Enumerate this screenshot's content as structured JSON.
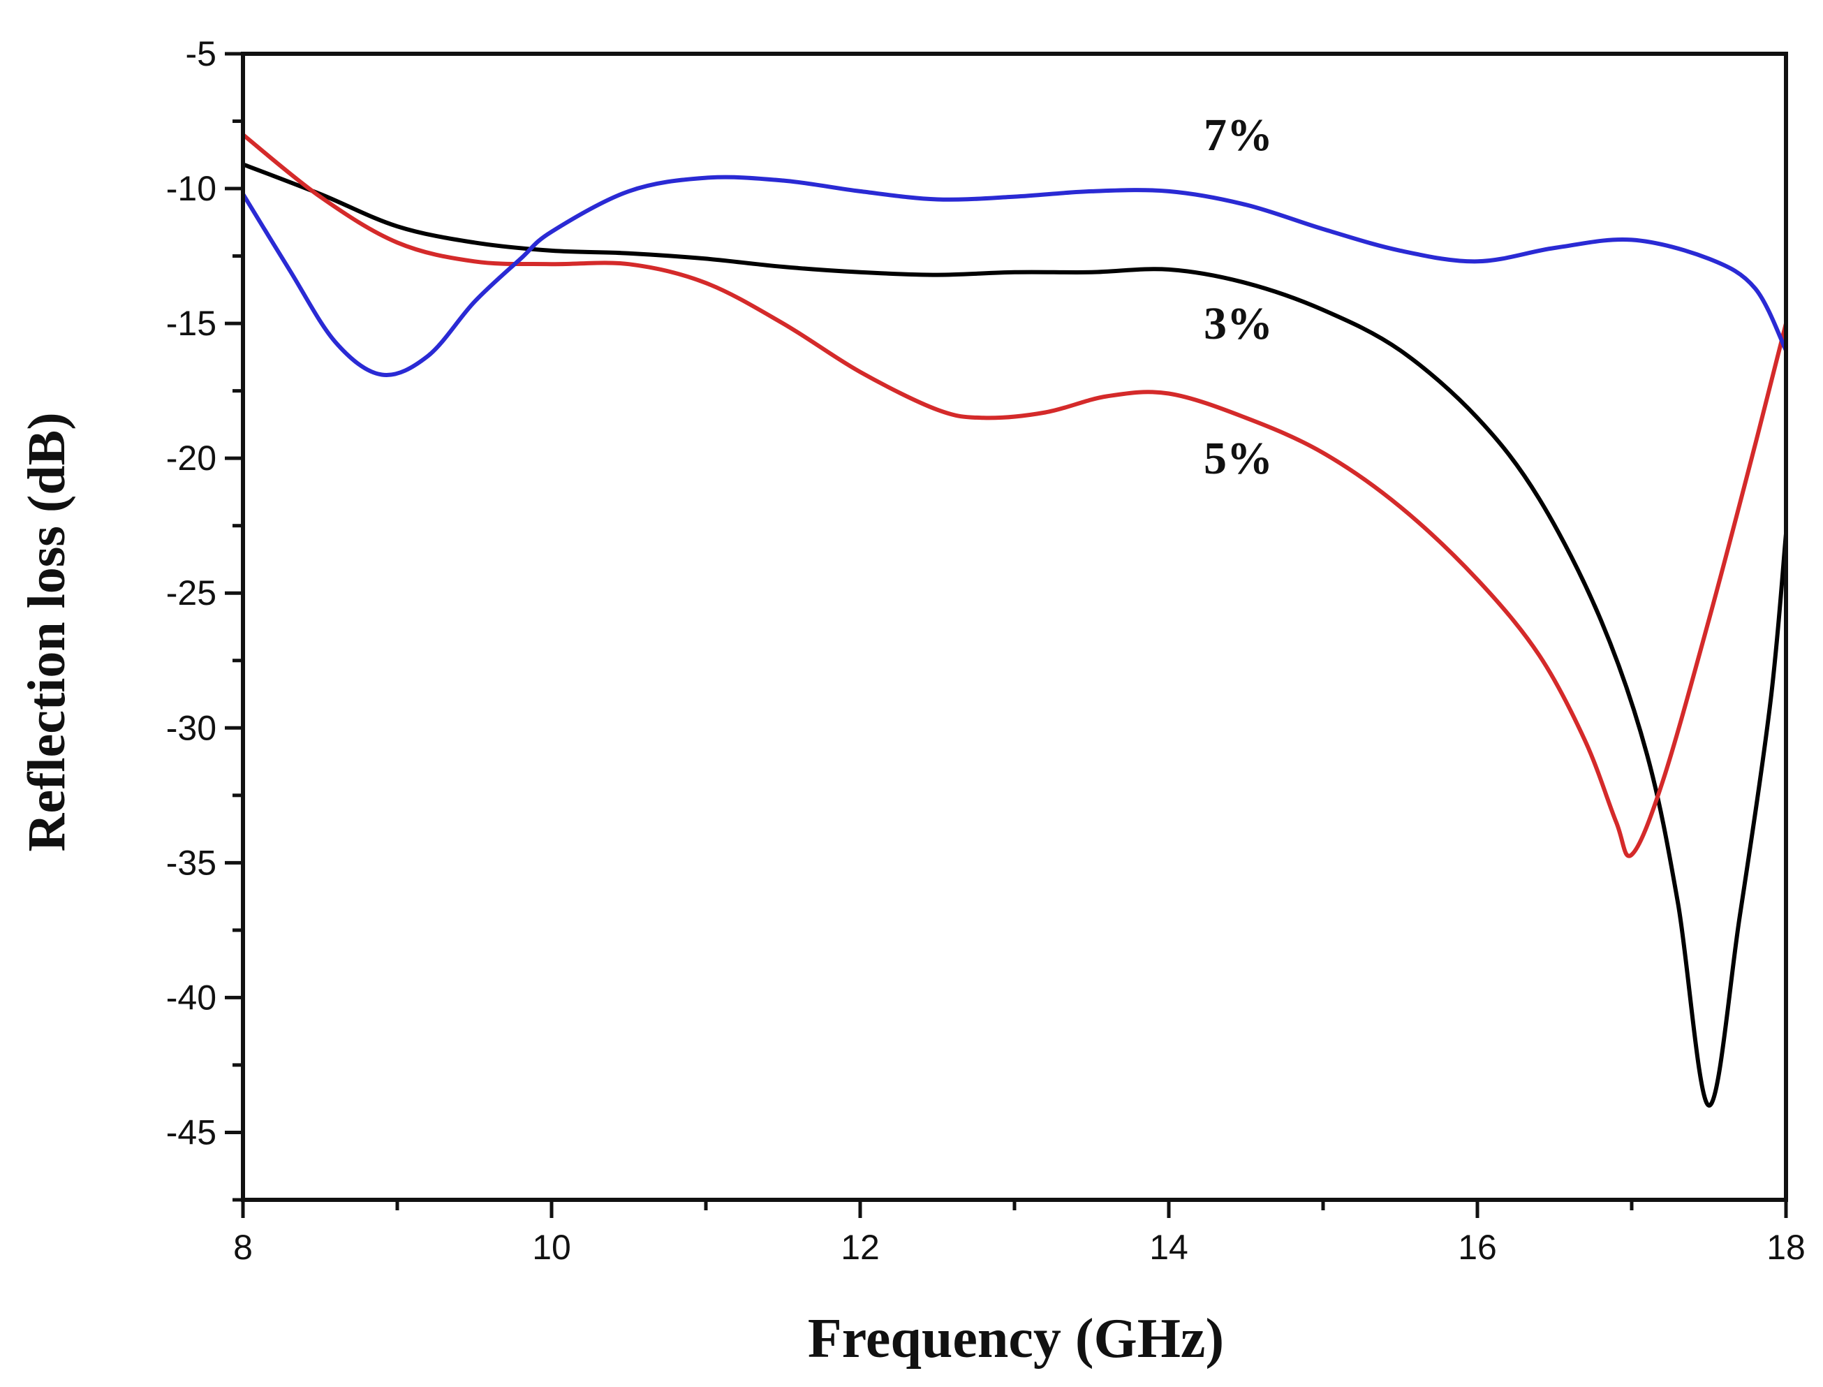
{
  "chart_data": {
    "type": "line",
    "title": "",
    "xlabel": "Frequency (GHz)",
    "ylabel": "Reflection loss (dB)",
    "xlim": [
      8,
      18
    ],
    "ylim": [
      -47.5,
      -5
    ],
    "xticks": [
      8,
      10,
      12,
      14,
      16,
      18
    ],
    "yticks": [
      -5,
      -10,
      -15,
      -20,
      -25,
      -30,
      -35,
      -40,
      -45
    ],
    "xtick_labels": [
      "8",
      "10",
      "12",
      "14",
      "16",
      "18"
    ],
    "ytick_labels": [
      "-5",
      "-10",
      "-15",
      "-20",
      "-25",
      "-30",
      "-35",
      "-40",
      "-45"
    ],
    "grid": false,
    "legend": "inline labels",
    "series": [
      {
        "name": "3%",
        "color": "#000000",
        "x": [
          8.0,
          8.5,
          9.0,
          9.5,
          10.0,
          10.5,
          11.0,
          11.5,
          12.0,
          12.5,
          13.0,
          13.5,
          14.0,
          14.5,
          15.0,
          15.5,
          16.0,
          16.4,
          16.8,
          17.1,
          17.3,
          17.5,
          17.7,
          17.9,
          18.0
        ],
        "values": [
          -9.1,
          -10.2,
          -11.4,
          -12.0,
          -12.3,
          -12.4,
          -12.6,
          -12.9,
          -13.1,
          -13.2,
          -13.1,
          -13.1,
          -13.0,
          -13.5,
          -14.5,
          -16.0,
          -18.5,
          -21.5,
          -26.0,
          -31.0,
          -36.5,
          -44.0,
          -37.0,
          -29.0,
          -22.8
        ]
      },
      {
        "name": "5%",
        "color": "#d42a2a",
        "x": [
          8.0,
          8.5,
          9.0,
          9.5,
          10.0,
          10.5,
          11.0,
          11.5,
          12.0,
          12.5,
          12.8,
          13.2,
          13.6,
          14.0,
          14.5,
          15.0,
          15.5,
          16.0,
          16.4,
          16.7,
          16.9,
          17.0,
          17.2,
          17.5,
          17.8,
          18.0
        ],
        "values": [
          -8.0,
          -10.3,
          -12.0,
          -12.7,
          -12.8,
          -12.8,
          -13.5,
          -15.0,
          -16.8,
          -18.2,
          -18.5,
          -18.3,
          -17.7,
          -17.6,
          -18.5,
          -19.8,
          -21.8,
          -24.5,
          -27.3,
          -30.5,
          -33.5,
          -34.7,
          -32.0,
          -26.0,
          -19.5,
          -15.0
        ]
      },
      {
        "name": "7%",
        "color": "#2a2ad4",
        "x": [
          8.0,
          8.3,
          8.6,
          8.9,
          9.2,
          9.5,
          9.8,
          10.0,
          10.5,
          11.0,
          11.5,
          12.0,
          12.5,
          13.0,
          13.5,
          14.0,
          14.5,
          15.0,
          15.5,
          16.0,
          16.5,
          17.0,
          17.5,
          17.8,
          18.0
        ],
        "values": [
          -10.2,
          -13.0,
          -15.7,
          -16.9,
          -16.2,
          -14.2,
          -12.6,
          -11.6,
          -10.1,
          -9.6,
          -9.7,
          -10.1,
          -10.4,
          -10.3,
          -10.1,
          -10.1,
          -10.6,
          -11.5,
          -12.3,
          -12.7,
          -12.2,
          -11.9,
          -12.6,
          -13.7,
          -16.0
        ]
      }
    ],
    "annotations": [
      {
        "text": "7%",
        "x": 14.45,
        "y": -8.0
      },
      {
        "text": "3%",
        "x": 14.45,
        "y": -15.0
      },
      {
        "text": "5%",
        "x": 14.45,
        "y": -20.0
      }
    ]
  }
}
